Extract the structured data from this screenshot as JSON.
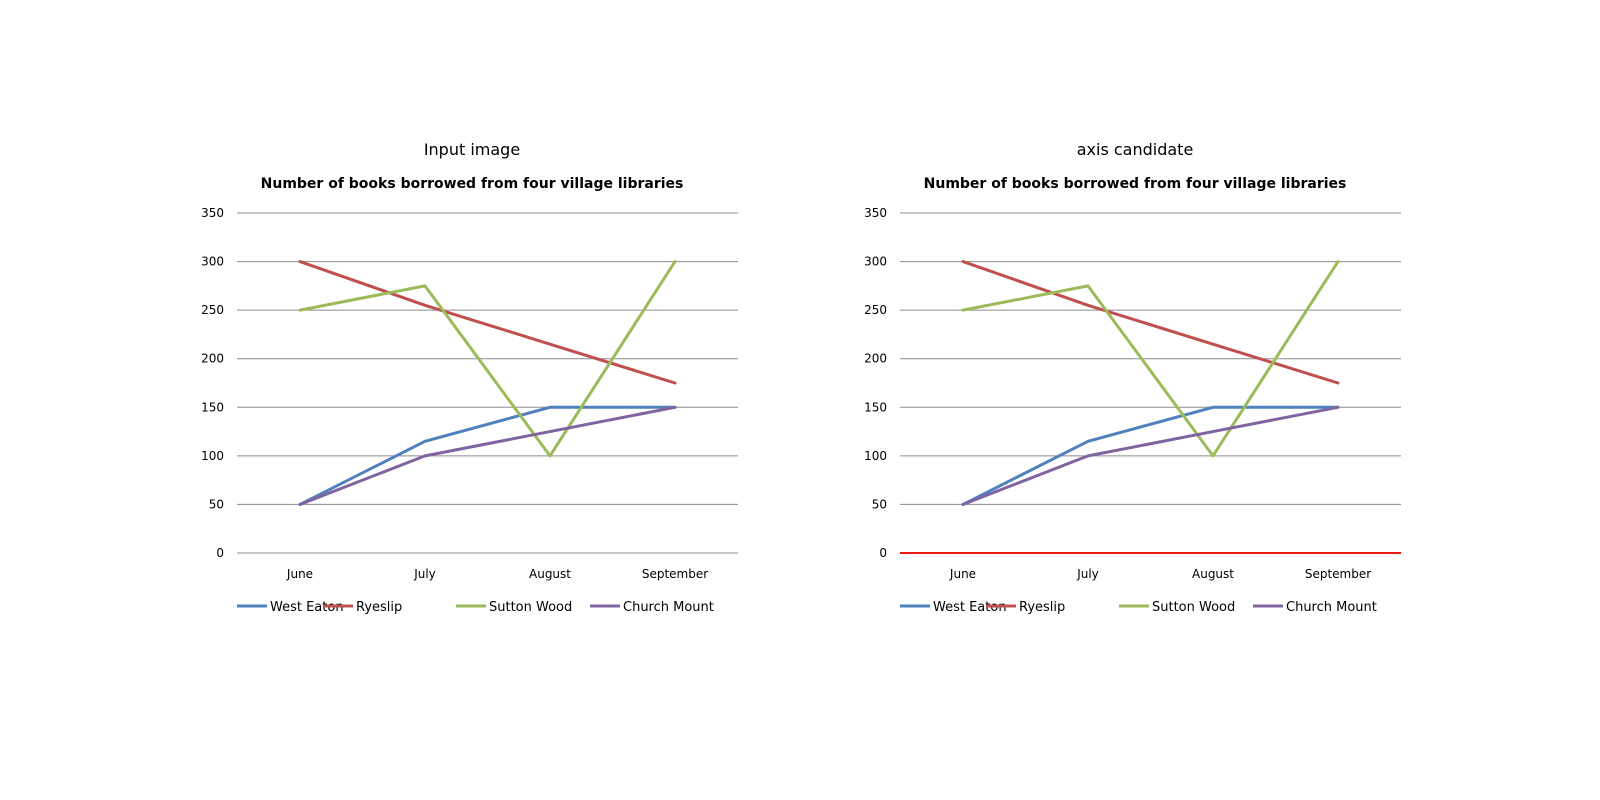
{
  "panels": [
    {
      "panel_title": "Input image",
      "axis_highlight": null,
      "chart_data": {
        "type": "line",
        "title": "Number of books borrowed from four village libraries",
        "categories": [
          "June",
          "July",
          "August",
          "September"
        ],
        "y_ticks": [
          "0",
          "50",
          "100",
          "150",
          "200",
          "250",
          "300",
          "350"
        ],
        "ylim": [
          0,
          350
        ],
        "grid": true,
        "legend_position": "bottom",
        "series": [
          {
            "name": "West Eaton",
            "color": "#4f81bd",
            "values": [
              50,
              115,
              150,
              150
            ]
          },
          {
            "name": "Ryeslip",
            "color": "#c0504d",
            "values": [
              300,
              255,
              215,
              175
            ]
          },
          {
            "name": "Sutton Wood",
            "color": "#9bbb59",
            "values": [
              250,
              275,
              100,
              300
            ]
          },
          {
            "name": "Church Mount",
            "color": "#8064a2",
            "values": [
              50,
              100,
              125,
              150
            ]
          }
        ]
      }
    },
    {
      "panel_title": "axis candidate",
      "axis_highlight": "#e8190f",
      "chart_data": {
        "type": "line",
        "title": "Number of books borrowed from four village libraries",
        "categories": [
          "June",
          "July",
          "August",
          "September"
        ],
        "y_ticks": [
          "0",
          "50",
          "100",
          "150",
          "200",
          "250",
          "300",
          "350"
        ],
        "ylim": [
          0,
          350
        ],
        "grid": true,
        "legend_position": "bottom",
        "series": [
          {
            "name": "West Eaton",
            "color": "#4f81bd",
            "values": [
              50,
              115,
              150,
              150
            ]
          },
          {
            "name": "Ryeslip",
            "color": "#c0504d",
            "values": [
              300,
              255,
              215,
              175
            ]
          },
          {
            "name": "Sutton Wood",
            "color": "#9bbb59",
            "values": [
              250,
              275,
              100,
              300
            ]
          },
          {
            "name": "Church Mount",
            "color": "#8064a2",
            "values": [
              50,
              100,
              125,
              150
            ]
          }
        ]
      }
    }
  ]
}
